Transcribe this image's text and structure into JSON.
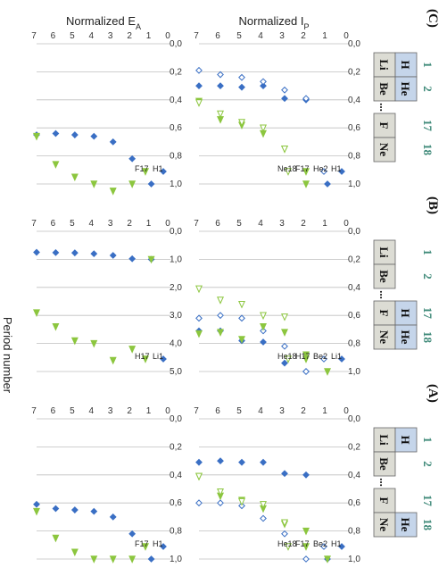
{
  "colors": {
    "blue": "#3a6fc4",
    "green": "#8cc63f",
    "grid": "#bfbfbf",
    "cell_blue": "#c5d5ea",
    "cell_grey": "#dcdcd4",
    "group_label": "#3f8a79"
  },
  "x_axis_label": "Period number",
  "panels": [
    {
      "id": "A",
      "label": "(A)",
      "group_labels": [
        "1",
        "2",
        "17",
        "18"
      ],
      "table": {
        "row1": [
          "H",
          "",
          "He"
        ],
        "row2": [
          "Li",
          "Be",
          "...",
          "F",
          "Ne"
        ]
      },
      "blue_cells": [
        "H",
        "He"
      ]
    },
    {
      "id": "B",
      "label": "(B)",
      "group_labels": [
        "1",
        "2",
        "17",
        "18"
      ],
      "table": {
        "row1": [
          "",
          "",
          "H",
          "He"
        ],
        "row2": [
          "Li",
          "Be",
          "...",
          "F",
          "Ne"
        ]
      },
      "blue_cells": [
        "H",
        "He"
      ]
    },
    {
      "id": "C",
      "label": "(C)",
      "group_labels": [
        "1",
        "2",
        "17",
        "18"
      ],
      "table": {
        "row1": [
          "H",
          "He",
          ""
        ],
        "row2": [
          "Li",
          "Be",
          "...",
          "F",
          "Ne"
        ]
      },
      "blue_cells": [
        "H",
        "He"
      ]
    }
  ],
  "chart_data": [
    {
      "panel": "C",
      "type": "scatter",
      "ylabel": "Normalized I_P",
      "xlim": [
        0,
        7
      ],
      "ylim": [
        0,
        1.0
      ],
      "yticks": [
        "0,0",
        "0,2",
        "0,4",
        "0,6",
        "0,8",
        "1,0"
      ],
      "xticks": [
        "0",
        "1",
        "2",
        "3",
        "4",
        "5",
        "6",
        "7"
      ],
      "legend": [
        "H1",
        "He2",
        "F17",
        "Ne18"
      ],
      "series": [
        {
          "name": "H1",
          "marker": "diamond",
          "color": "#3a6fc4",
          "x": [
            1,
            2,
            3,
            4,
            5,
            6,
            7
          ],
          "y": [
            1.0,
            0.4,
            0.39,
            0.3,
            0.31,
            0.3,
            0.3
          ]
        },
        {
          "name": "He2",
          "marker": "diamond-open",
          "color": "#3a6fc4",
          "x": [
            2,
            3,
            4,
            5,
            6,
            7
          ],
          "y": [
            0.39,
            0.33,
            0.27,
            0.24,
            0.22,
            0.19
          ]
        },
        {
          "name": "F17",
          "marker": "triangle",
          "color": "#8cc63f",
          "x": [
            2,
            3,
            4,
            5,
            6,
            7
          ],
          "y": [
            1.0,
            0.75,
            0.64,
            0.58,
            0.54,
            0.41
          ]
        },
        {
          "name": "Ne18",
          "marker": "triangle-open",
          "color": "#8cc63f",
          "x": [
            3,
            4,
            5,
            6,
            7
          ],
          "y": [
            0.75,
            0.6,
            0.56,
            0.5,
            0.42
          ]
        }
      ]
    },
    {
      "panel": "C",
      "type": "scatter",
      "ylabel": "Normalized E_A",
      "xlim": [
        0,
        7
      ],
      "ylim": [
        0,
        1.0
      ],
      "yticks": [
        "0,0",
        "0,2",
        "0,4",
        "0,6",
        "0,8",
        "1,0"
      ],
      "xticks": [
        "0",
        "1",
        "2",
        "3",
        "4",
        "5",
        "6",
        "7"
      ],
      "legend": [
        "H1",
        "F17"
      ],
      "series": [
        {
          "name": "H1",
          "marker": "diamond",
          "color": "#3a6fc4",
          "x": [
            1,
            2,
            3,
            4,
            5,
            6,
            7
          ],
          "y": [
            1.0,
            0.82,
            0.7,
            0.66,
            0.65,
            0.64,
            0.65
          ]
        },
        {
          "name": "F17",
          "marker": "triangle",
          "color": "#8cc63f",
          "x": [
            2,
            3,
            4,
            5,
            6,
            7
          ],
          "y": [
            1.0,
            1.05,
            1.0,
            0.95,
            0.86,
            0.66
          ]
        }
      ]
    },
    {
      "panel": "B",
      "type": "scatter",
      "ylabel": "",
      "xlim": [
        0,
        7
      ],
      "ylim": [
        0,
        1.0
      ],
      "yticks": [
        "0,0",
        "0,2",
        "0,4",
        "0,6",
        "0,8",
        "1,0"
      ],
      "xticks": [
        "0",
        "1",
        "2",
        "3",
        "4",
        "5",
        "6",
        "7"
      ],
      "legend": [
        "Li1",
        "Be2",
        "H17",
        "He18"
      ],
      "series": [
        {
          "name": "Li1",
          "marker": "diamond",
          "color": "#3a6fc4",
          "x": [
            2,
            3,
            4,
            5,
            6,
            7
          ],
          "y": [
            1.0,
            0.94,
            0.79,
            0.78,
            0.71,
            0.71
          ]
        },
        {
          "name": "Be2",
          "marker": "diamond-open",
          "color": "#3a6fc4",
          "x": [
            2,
            3,
            4,
            5,
            6,
            7
          ],
          "y": [
            1.0,
            0.82,
            0.71,
            0.62,
            0.6,
            0.62
          ]
        },
        {
          "name": "H17",
          "marker": "triangle",
          "color": "#8cc63f",
          "x": [
            1,
            2,
            3,
            4,
            5,
            6,
            7
          ],
          "y": [
            1.0,
            0.88,
            0.72,
            0.68,
            0.77,
            0.72,
            0.73
          ]
        },
        {
          "name": "He18",
          "marker": "triangle-open",
          "color": "#8cc63f",
          "x": [
            3,
            4,
            5,
            6,
            7
          ],
          "y": [
            0.61,
            0.6,
            0.52,
            0.49,
            0.41
          ]
        }
      ]
    },
    {
      "panel": "B",
      "type": "scatter",
      "ylabel": "",
      "xlim": [
        0,
        7
      ],
      "ylim": [
        0,
        5.0
      ],
      "yticks": [
        "0,0",
        "1,0",
        "2,0",
        "3,0",
        "4,0",
        "5,0"
      ],
      "xticks": [
        "0",
        "1",
        "2",
        "3",
        "4",
        "5",
        "6",
        "7"
      ],
      "legend": [
        "Li1",
        "H17"
      ],
      "series": [
        {
          "name": "Li1",
          "marker": "diamond",
          "color": "#3a6fc4",
          "x": [
            1,
            2,
            3,
            4,
            5,
            6,
            7
          ],
          "y": [
            1.0,
            0.98,
            0.86,
            0.8,
            0.77,
            0.76,
            0.75
          ]
        },
        {
          "name": "H17",
          "marker": "triangle",
          "color": "#8cc63f",
          "x": [
            1,
            2,
            3,
            4,
            5,
            6,
            7
          ],
          "y": [
            1.0,
            4.2,
            4.6,
            4.0,
            3.9,
            3.4,
            2.9
          ]
        }
      ]
    },
    {
      "panel": "A",
      "type": "scatter",
      "ylabel": "",
      "xlim": [
        0,
        7
      ],
      "ylim": [
        0,
        1.0
      ],
      "yticks": [
        "0,0",
        "0,2",
        "0,4",
        "0,6",
        "0,8",
        "1,0"
      ],
      "xticks": [
        "0",
        "1",
        "2",
        "3",
        "4",
        "5",
        "6",
        "7"
      ],
      "legend": [
        "H1",
        "Be2",
        "F17",
        "He18"
      ],
      "series": [
        {
          "name": "H1",
          "marker": "diamond",
          "color": "#3a6fc4",
          "x": [
            1,
            2,
            3,
            4,
            5,
            6,
            7
          ],
          "y": [
            1.0,
            0.4,
            0.39,
            0.31,
            0.31,
            0.3,
            0.31
          ]
        },
        {
          "name": "Be2",
          "marker": "diamond-open",
          "color": "#3a6fc4",
          "x": [
            2,
            3,
            4,
            5,
            6,
            7
          ],
          "y": [
            1.0,
            0.82,
            0.71,
            0.62,
            0.6,
            0.6
          ]
        },
        {
          "name": "F17",
          "marker": "triangle",
          "color": "#8cc63f",
          "x": [
            1,
            2,
            3,
            4,
            5,
            6,
            7
          ],
          "y": [
            1.0,
            0.8,
            0.75,
            0.64,
            0.58,
            0.55,
            0.41
          ]
        },
        {
          "name": "He18",
          "marker": "triangle-open",
          "color": "#8cc63f",
          "x": [
            3,
            4,
            5,
            6,
            7
          ],
          "y": [
            0.74,
            0.61,
            0.59,
            0.52,
            0.41
          ]
        }
      ]
    },
    {
      "panel": "A",
      "type": "scatter",
      "ylabel": "",
      "xlim": [
        0,
        7
      ],
      "ylim": [
        0,
        1.0
      ],
      "yticks": [
        "0,0",
        "0,2",
        "0,4",
        "0,6",
        "0,8",
        "1,0"
      ],
      "xticks": [
        "0",
        "1",
        "2",
        "3",
        "4",
        "5",
        "6",
        "7"
      ],
      "legend": [
        "H1",
        "F17"
      ],
      "series": [
        {
          "name": "H1",
          "marker": "diamond",
          "color": "#3a6fc4",
          "x": [
            1,
            2,
            3,
            4,
            5,
            6,
            7
          ],
          "y": [
            1.0,
            0.82,
            0.7,
            0.66,
            0.65,
            0.64,
            0.61
          ]
        },
        {
          "name": "F17",
          "marker": "triangle",
          "color": "#8cc63f",
          "x": [
            2,
            3,
            4,
            5,
            6,
            7
          ],
          "y": [
            1.0,
            1.0,
            1.0,
            0.95,
            0.85,
            0.66
          ]
        }
      ]
    }
  ]
}
